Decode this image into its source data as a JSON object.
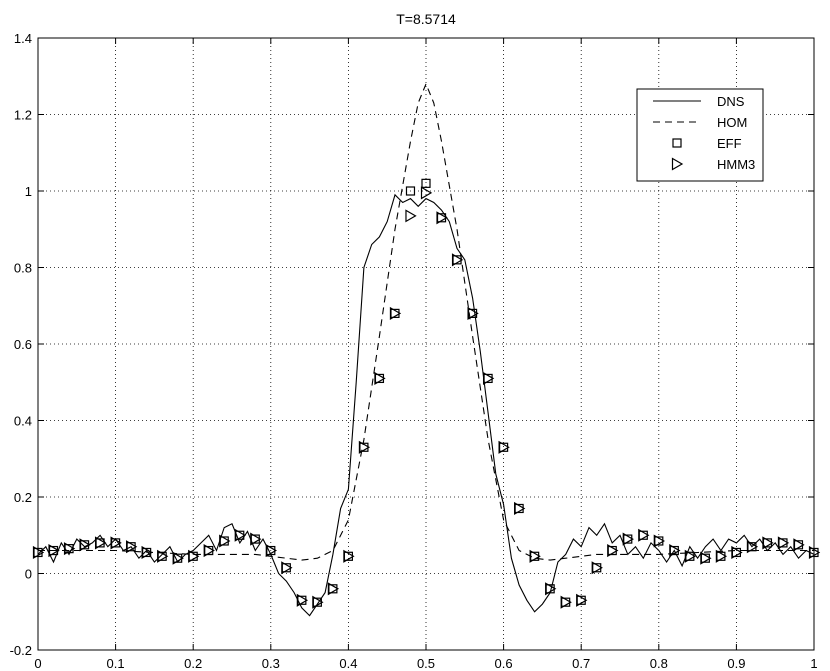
{
  "chart_data": {
    "type": "line",
    "title": "T=8.5714",
    "xlabel": "",
    "ylabel": "",
    "xlim": [
      0,
      1
    ],
    "ylim": [
      -0.2,
      1.4
    ],
    "grid": true,
    "legend_position": "top-right",
    "xticks": [
      "0",
      "0.1",
      "0.2",
      "0.3",
      "0.4",
      "0.5",
      "0.6",
      "0.7",
      "0.8",
      "0.9",
      "1"
    ],
    "yticks": [
      "-0.2",
      "0",
      "0.2",
      "0.4",
      "0.6",
      "0.8",
      "1",
      "1.2",
      "1.4"
    ],
    "series": [
      {
        "name": "DNS",
        "style": "solid",
        "x": [
          0,
          0.01,
          0.02,
          0.03,
          0.04,
          0.05,
          0.06,
          0.07,
          0.08,
          0.09,
          0.1,
          0.11,
          0.12,
          0.13,
          0.14,
          0.15,
          0.16,
          0.17,
          0.18,
          0.19,
          0.2,
          0.21,
          0.22,
          0.23,
          0.24,
          0.25,
          0.26,
          0.27,
          0.28,
          0.29,
          0.3,
          0.31,
          0.32,
          0.33,
          0.34,
          0.35,
          0.36,
          0.37,
          0.38,
          0.39,
          0.4,
          0.41,
          0.42,
          0.43,
          0.44,
          0.45,
          0.46,
          0.47,
          0.48,
          0.49,
          0.5,
          0.51,
          0.52,
          0.53,
          0.54,
          0.55,
          0.56,
          0.57,
          0.58,
          0.59,
          0.6,
          0.61,
          0.62,
          0.63,
          0.64,
          0.65,
          0.66,
          0.67,
          0.68,
          0.69,
          0.7,
          0.71,
          0.72,
          0.73,
          0.74,
          0.75,
          0.76,
          0.77,
          0.78,
          0.79,
          0.8,
          0.81,
          0.82,
          0.83,
          0.84,
          0.85,
          0.86,
          0.87,
          0.88,
          0.89,
          0.9,
          0.91,
          0.92,
          0.93,
          0.94,
          0.95,
          0.96,
          0.97,
          0.98,
          0.99,
          1.0
        ],
        "y": [
          0.05,
          0.07,
          0.03,
          0.08,
          0.05,
          0.09,
          0.07,
          0.08,
          0.1,
          0.07,
          0.09,
          0.06,
          0.07,
          0.04,
          0.06,
          0.03,
          0.05,
          0.07,
          0.03,
          0.05,
          0.06,
          0.08,
          0.1,
          0.06,
          0.12,
          0.13,
          0.08,
          0.11,
          0.06,
          0.09,
          0.05,
          0.0,
          -0.02,
          -0.05,
          -0.09,
          -0.11,
          -0.08,
          -0.05,
          0.05,
          0.17,
          0.22,
          0.5,
          0.8,
          0.86,
          0.88,
          0.92,
          0.99,
          0.97,
          0.98,
          0.96,
          0.98,
          0.97,
          0.95,
          0.92,
          0.85,
          0.82,
          0.72,
          0.58,
          0.42,
          0.26,
          0.18,
          0.04,
          -0.03,
          -0.07,
          -0.1,
          -0.08,
          -0.05,
          0.03,
          0.05,
          0.09,
          0.07,
          0.12,
          0.1,
          0.13,
          0.08,
          0.1,
          0.05,
          0.07,
          0.04,
          0.08,
          0.06,
          0.03,
          0.06,
          0.02,
          0.07,
          0.04,
          0.07,
          0.09,
          0.06,
          0.09,
          0.08,
          0.1,
          0.07,
          0.09,
          0.06,
          0.08,
          0.05,
          0.07,
          0.04,
          0.06,
          0.05
        ]
      },
      {
        "name": "HOM",
        "style": "dashed",
        "x": [
          0,
          0.05,
          0.1,
          0.15,
          0.2,
          0.25,
          0.28,
          0.3,
          0.32,
          0.34,
          0.36,
          0.38,
          0.4,
          0.42,
          0.44,
          0.46,
          0.48,
          0.49,
          0.5,
          0.51,
          0.52,
          0.54,
          0.56,
          0.58,
          0.6,
          0.62,
          0.64,
          0.66,
          0.68,
          0.7,
          0.72,
          0.75,
          0.8,
          0.85,
          0.9,
          0.95,
          1.0
        ],
        "y": [
          0.06,
          0.06,
          0.06,
          0.055,
          0.05,
          0.05,
          0.05,
          0.045,
          0.04,
          0.035,
          0.04,
          0.06,
          0.14,
          0.35,
          0.62,
          0.9,
          1.13,
          1.23,
          1.28,
          1.23,
          1.13,
          0.9,
          0.62,
          0.35,
          0.14,
          0.06,
          0.04,
          0.035,
          0.04,
          0.045,
          0.05,
          0.05,
          0.05,
          0.055,
          0.06,
          0.06,
          0.06
        ]
      },
      {
        "name": "EFF",
        "style": "square-markers",
        "x": [
          0.0,
          0.02,
          0.04,
          0.06,
          0.08,
          0.1,
          0.12,
          0.14,
          0.16,
          0.18,
          0.2,
          0.22,
          0.24,
          0.26,
          0.28,
          0.3,
          0.32,
          0.34,
          0.36,
          0.38,
          0.4,
          0.42,
          0.44,
          0.46,
          0.48,
          0.5,
          0.52,
          0.54,
          0.56,
          0.58,
          0.6,
          0.62,
          0.64,
          0.66,
          0.68,
          0.7,
          0.72,
          0.74,
          0.76,
          0.78,
          0.8,
          0.82,
          0.84,
          0.86,
          0.88,
          0.9,
          0.92,
          0.94,
          0.96,
          0.98,
          1.0
        ],
        "y": [
          0.055,
          0.06,
          0.065,
          0.075,
          0.08,
          0.08,
          0.07,
          0.055,
          0.045,
          0.04,
          0.045,
          0.06,
          0.085,
          0.1,
          0.09,
          0.06,
          0.015,
          -0.07,
          -0.075,
          -0.04,
          0.045,
          0.33,
          0.51,
          0.68,
          1.0,
          1.02,
          0.93,
          0.82,
          0.68,
          0.51,
          0.33,
          0.17,
          0.045,
          -0.04,
          -0.075,
          -0.07,
          0.015,
          0.06,
          0.09,
          0.1,
          0.085,
          0.06,
          0.045,
          0.04,
          0.045,
          0.055,
          0.07,
          0.08,
          0.08,
          0.075,
          0.055
        ]
      },
      {
        "name": "HMM3",
        "style": "triangle-markers",
        "x": [
          0.0,
          0.02,
          0.04,
          0.06,
          0.08,
          0.1,
          0.12,
          0.14,
          0.16,
          0.18,
          0.2,
          0.22,
          0.24,
          0.26,
          0.28,
          0.3,
          0.32,
          0.34,
          0.36,
          0.38,
          0.4,
          0.42,
          0.44,
          0.46,
          0.48,
          0.5,
          0.52,
          0.54,
          0.56,
          0.58,
          0.6,
          0.62,
          0.64,
          0.66,
          0.68,
          0.7,
          0.72,
          0.74,
          0.76,
          0.78,
          0.8,
          0.82,
          0.84,
          0.86,
          0.88,
          0.9,
          0.92,
          0.94,
          0.96,
          0.98,
          1.0
        ],
        "y": [
          0.055,
          0.06,
          0.065,
          0.075,
          0.08,
          0.08,
          0.07,
          0.055,
          0.045,
          0.04,
          0.045,
          0.06,
          0.085,
          0.1,
          0.09,
          0.06,
          0.015,
          -0.07,
          -0.075,
          -0.04,
          0.045,
          0.33,
          0.51,
          0.68,
          0.935,
          0.995,
          0.93,
          0.82,
          0.68,
          0.51,
          0.33,
          0.17,
          0.045,
          -0.04,
          -0.075,
          -0.07,
          0.015,
          0.06,
          0.09,
          0.1,
          0.085,
          0.06,
          0.045,
          0.04,
          0.045,
          0.055,
          0.07,
          0.08,
          0.08,
          0.075,
          0.055
        ]
      }
    ]
  }
}
